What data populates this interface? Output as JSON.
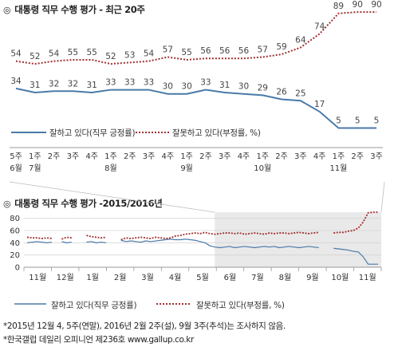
{
  "chart_data": [
    {
      "type": "line",
      "title": "대통령 직무 수행 평가 - 최근 20주",
      "x_week_labels": [
        "5주",
        "1주",
        "2주",
        "3주",
        "4주",
        "1주",
        "2주",
        "3주",
        "4주",
        "1주",
        "2주",
        "3주",
        "4주",
        "1주",
        "2주",
        "3주",
        "4주",
        "1주",
        "2주",
        "3주"
      ],
      "x_month_labels": [
        {
          "label": "6월",
          "index": 0
        },
        {
          "label": "7월",
          "index": 1
        },
        {
          "label": "8월",
          "index": 5
        },
        {
          "label": "9월",
          "index": 9
        },
        {
          "label": "10월",
          "index": 13
        },
        {
          "label": "11월",
          "index": 17
        }
      ],
      "series": [
        {
          "name": "잘하고 있다(직무 긍정률)",
          "style": "solid",
          "color": "#4a7aa8",
          "values": [
            34,
            31,
            32,
            32,
            31,
            33,
            33,
            33,
            30,
            30,
            33,
            31,
            30,
            29,
            26,
            25,
            17,
            5,
            5,
            5
          ]
        },
        {
          "name": "잘못하고 있다(부정률, %)",
          "style": "dotted",
          "color": "#a03030",
          "values": [
            54,
            52,
            54,
            55,
            55,
            52,
            53,
            54,
            57,
            55,
            56,
            56,
            56,
            57,
            59,
            64,
            74,
            89,
            90,
            90
          ]
        }
      ]
    },
    {
      "type": "line",
      "title": "대통령 직무 수행 평가 -2015/2016년",
      "y_ticks": [
        0,
        20,
        40,
        60,
        80
      ],
      "ylim": [
        0,
        100
      ],
      "x_month_labels": [
        "11월",
        "12월",
        "1월",
        "2월",
        "3월",
        "4월",
        "5월",
        "6월",
        "7월",
        "8월",
        "9월",
        "10월",
        "11월"
      ],
      "highlight_start_month_index": 7,
      "series": [
        {
          "name": "잘하고 있다(직무 긍정률)",
          "style": "solid",
          "color": "#4a7aa8",
          "values": [
            40,
            41,
            42,
            41,
            40,
            41,
            null,
            42,
            40,
            41,
            null,
            null,
            41,
            42,
            40,
            41,
            40,
            null,
            null,
            44,
            42,
            43,
            42,
            41,
            43,
            42,
            43,
            44,
            45,
            46,
            45,
            45,
            46,
            45,
            44,
            42,
            40,
            35,
            33,
            32,
            33,
            34,
            32,
            33,
            34,
            33,
            32,
            33,
            34,
            33,
            34,
            32,
            33,
            34,
            33,
            32,
            33,
            34,
            33,
            32,
            null,
            null,
            31,
            30,
            29,
            28,
            26,
            25,
            17,
            5,
            5,
            5
          ]
        },
        {
          "name": "잘못하고 있다(부정률, %)",
          "style": "dotted",
          "color": "#a03030",
          "values": [
            49,
            48,
            48,
            47,
            48,
            47,
            null,
            46,
            49,
            48,
            null,
            null,
            52,
            50,
            49,
            48,
            49,
            null,
            null,
            45,
            48,
            47,
            48,
            49,
            48,
            47,
            49,
            48,
            47,
            48,
            51,
            52,
            54,
            55,
            56,
            55,
            57,
            55,
            54,
            55,
            56,
            56,
            55,
            56,
            54,
            55,
            56,
            55,
            54,
            56,
            55,
            56,
            56,
            55,
            56,
            57,
            56,
            55,
            56,
            57,
            null,
            null,
            56,
            57,
            57,
            59,
            60,
            64,
            74,
            89,
            90,
            90
          ]
        }
      ]
    }
  ],
  "legend": {
    "positive": "잘하고 있다(직무 긍정률)",
    "negative": "잘못하고 있다(부정률, %)"
  },
  "footnotes": [
    "*2015년 12월 4, 5주(연말), 2016년 2월 2주(설), 9월 3주(추석)는 조사하지 않음.",
    "*한국갤럽 데일리 오피니언 제236호 www.gallup.co.kr"
  ],
  "icon": "target-icon",
  "colors": {
    "positive": "#4a7aa8",
    "negative": "#a03030",
    "highlight": "#e8e8e8",
    "grid": "#d6d6d6"
  }
}
